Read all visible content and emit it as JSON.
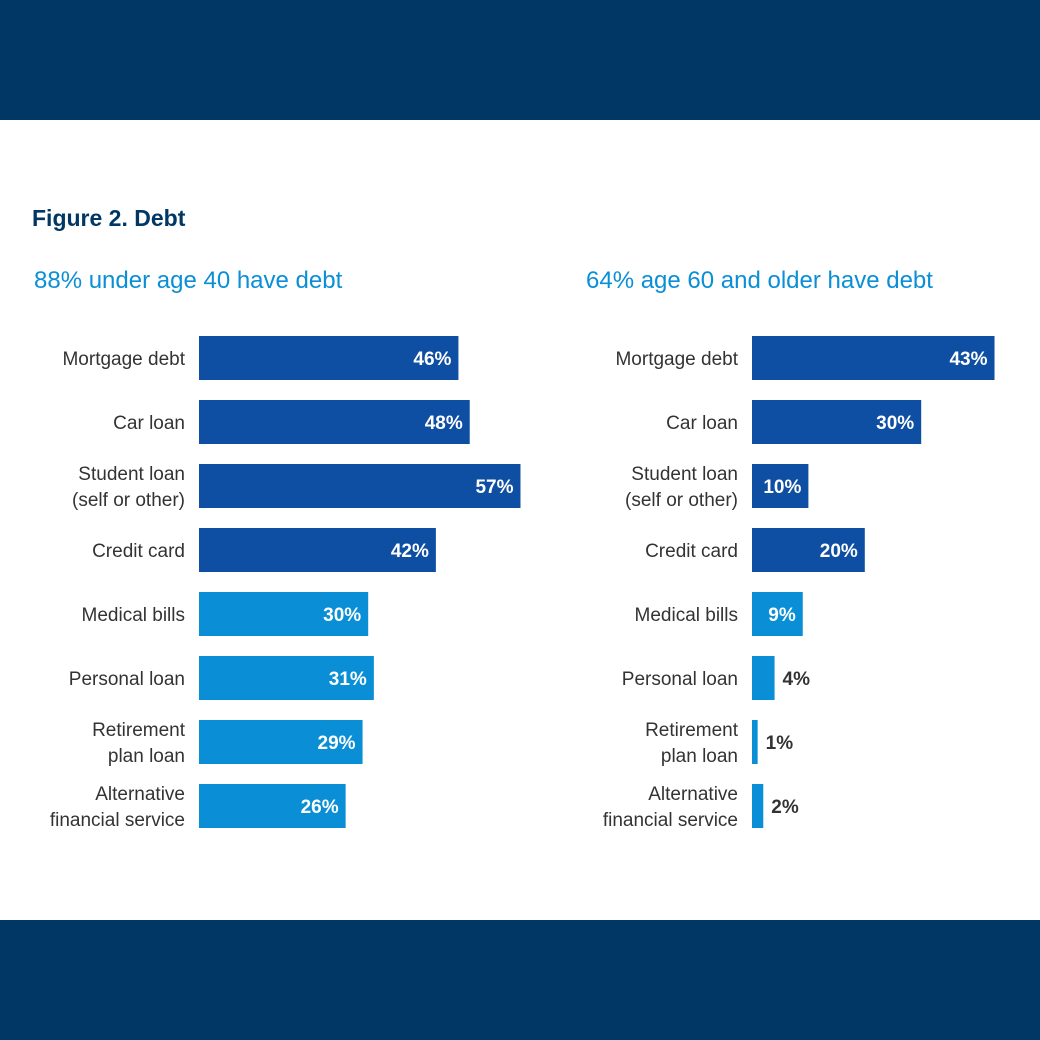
{
  "header": {
    "figure_title": "Figure 2. Debt"
  },
  "colors": {
    "band": "#003764",
    "dark_bar": "#0f4fa3",
    "light_bar": "#0a8fd6",
    "subtitle": "#0a8fd6",
    "value_inside": "#ffffff",
    "value_outside": "#333333"
  },
  "chart_data": [
    {
      "type": "bar",
      "orientation": "horizontal",
      "title": "88% under age 40 have debt",
      "categories": [
        [
          "Mortgage debt"
        ],
        [
          "Car loan"
        ],
        [
          "Student loan",
          "(self or other)"
        ],
        [
          "Credit card"
        ],
        [
          "Medical bills"
        ],
        [
          "Personal loan"
        ],
        [
          "Retirement",
          "plan loan"
        ],
        [
          "Alternative",
          "financial service"
        ]
      ],
      "values": [
        46,
        48,
        57,
        42,
        30,
        31,
        29,
        26
      ],
      "value_labels": [
        "46%",
        "48%",
        "57%",
        "42%",
        "30%",
        "31%",
        "29%",
        "26%"
      ],
      "bar_shade": [
        "dark",
        "dark",
        "dark",
        "dark",
        "light",
        "light",
        "light",
        "light"
      ],
      "xlim": [
        0,
        100
      ]
    },
    {
      "type": "bar",
      "orientation": "horizontal",
      "title": "64% age 60 and older have debt",
      "categories": [
        [
          "Mortgage debt"
        ],
        [
          "Car loan"
        ],
        [
          "Student loan",
          "(self or other)"
        ],
        [
          "Credit card"
        ],
        [
          "Medical bills"
        ],
        [
          "Personal loan"
        ],
        [
          "Retirement",
          "plan loan"
        ],
        [
          "Alternative",
          "financial service"
        ]
      ],
      "values": [
        43,
        30,
        10,
        20,
        9,
        4,
        1,
        2
      ],
      "value_labels": [
        "43%",
        "30%",
        "10%",
        "20%",
        "9%",
        "4%",
        "1%",
        "2%"
      ],
      "bar_shade": [
        "dark",
        "dark",
        "dark",
        "dark",
        "light",
        "light",
        "light",
        "light"
      ],
      "xlim": [
        0,
        100
      ]
    }
  ]
}
